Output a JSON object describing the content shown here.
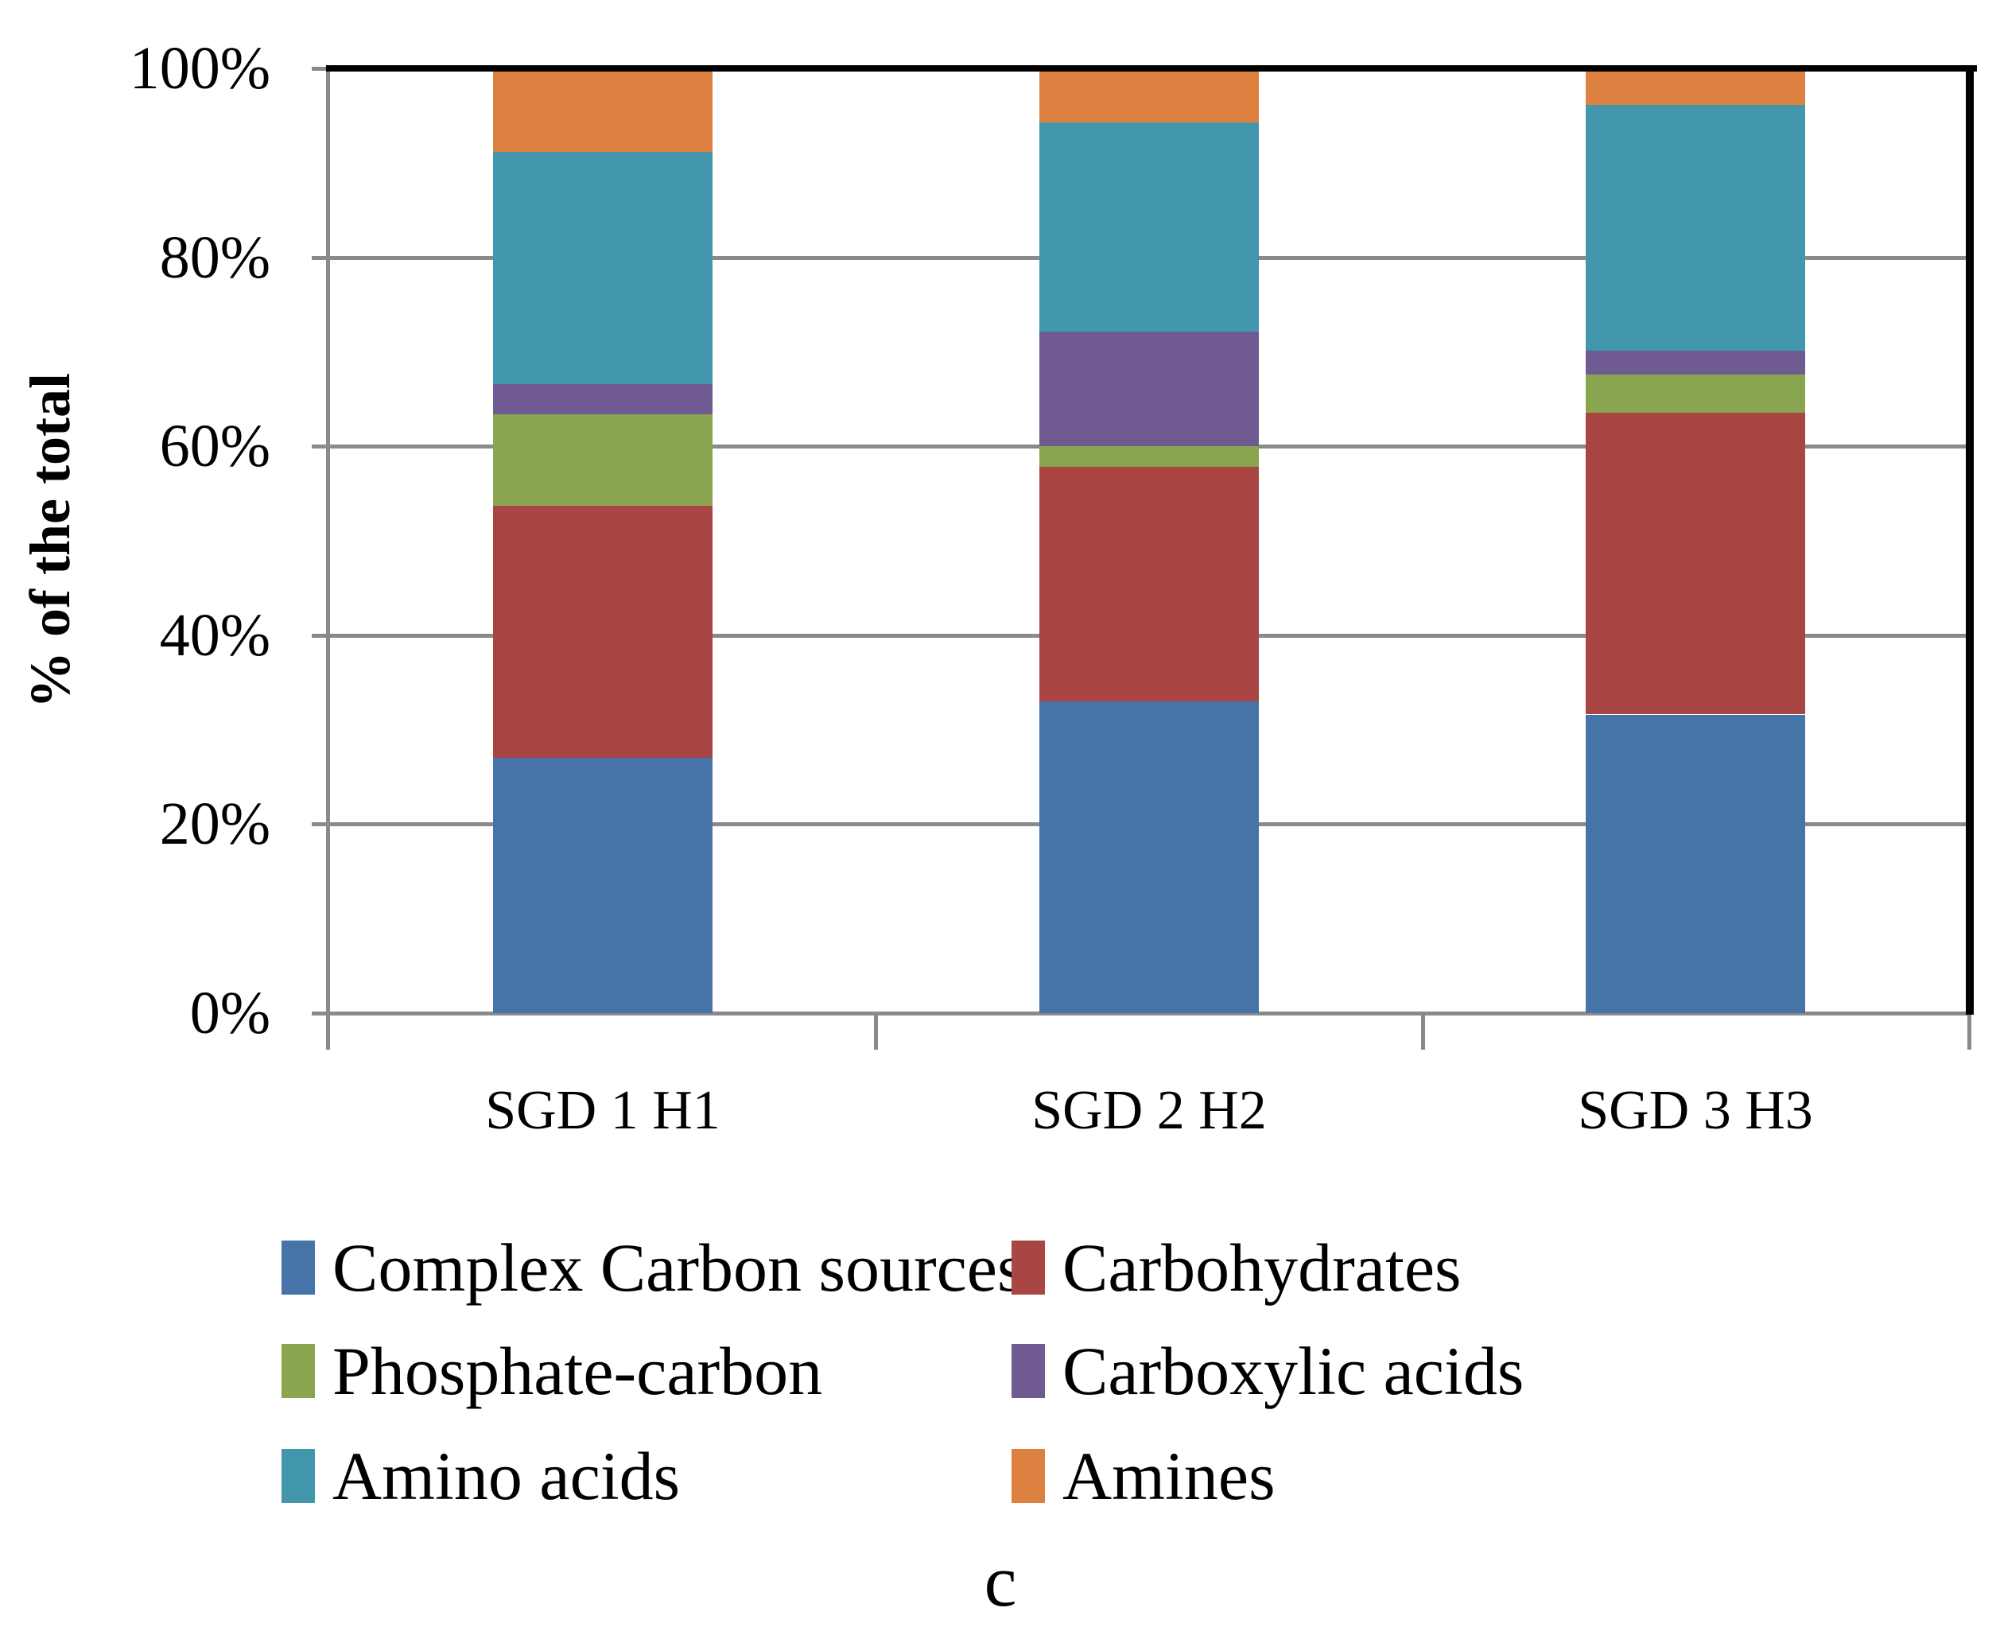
{
  "figure": {
    "caption": "c"
  },
  "y_axis": {
    "title": "% of the total",
    "tick_labels": [
      "100%",
      "80%",
      "60%",
      "40%",
      "20%",
      "0%"
    ]
  },
  "x_axis": {
    "categories": [
      "SGD 1 H1",
      "SGD 2 H2",
      "SGD 3 H3"
    ]
  },
  "legend": {
    "position": "bottom",
    "items": [
      {
        "label": "Complex Carbon sources",
        "color": "#4674A8"
      },
      {
        "label": "Carbohydrates",
        "color": "#A94543"
      },
      {
        "label": "Phosphate-carbon",
        "color": "#8AA54F"
      },
      {
        "label": "Carboxylic acids",
        "color": "#6F5A92"
      },
      {
        "label": "Amino acids",
        "color": "#4397AD"
      },
      {
        "label": "Amines",
        "color": "#DD8140"
      }
    ]
  },
  "chart_data": {
    "type": "bar",
    "stacked": true,
    "title": "",
    "xlabel": "",
    "ylabel": "% of the total",
    "ylim": [
      0,
      100
    ],
    "ytick_step": 20,
    "grid": true,
    "legend_position": "bottom",
    "categories": [
      "SGD 1 H1",
      "SGD 2 H2",
      "SGD 3 H3"
    ],
    "series": [
      {
        "name": "Complex Carbon sources",
        "color": "#4674A8",
        "values": [
          27.0,
          33.0,
          31.6
        ]
      },
      {
        "name": "Carbohydrates",
        "color": "#A94543",
        "values": [
          26.7,
          24.8,
          32.0
        ]
      },
      {
        "name": "Phosphate-carbon",
        "color": "#8AA54F",
        "values": [
          9.7,
          2.2,
          4.0
        ]
      },
      {
        "name": "Carboxylic acids",
        "color": "#6F5A92",
        "values": [
          3.2,
          12.2,
          2.5
        ]
      },
      {
        "name": "Amino acids",
        "color": "#4397AD",
        "values": [
          24.6,
          22.1,
          26.0
        ]
      },
      {
        "name": "Amines",
        "color": "#DD8140",
        "values": [
          8.8,
          5.7,
          3.9
        ]
      }
    ]
  },
  "colors": {
    "gridline": "#8a8a8a",
    "axis": "#8a8a8a",
    "plot_border": "#000000",
    "background": "#ffffff"
  }
}
